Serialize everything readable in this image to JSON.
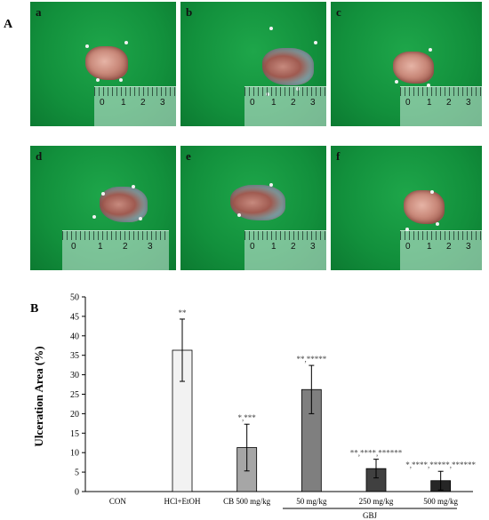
{
  "figure": {
    "panel_a_label": "A",
    "panel_b_label": "B",
    "photos": [
      {
        "letter": "a"
      },
      {
        "letter": "b"
      },
      {
        "letter": "c"
      },
      {
        "letter": "d"
      },
      {
        "letter": "e"
      },
      {
        "letter": "f"
      }
    ],
    "ruler_numbers": [
      "0",
      "1",
      "2",
      "3"
    ]
  },
  "chart_data": {
    "type": "bar",
    "ylabel": "Ulceration Area (%)",
    "ylim": [
      0,
      50
    ],
    "yticks": [
      0,
      5,
      10,
      15,
      20,
      25,
      30,
      35,
      40,
      45,
      50
    ],
    "categories": [
      "CON",
      "HCl+EtOH",
      "CB 500 mg/kg",
      "50 mg/kg",
      "250 mg/kg",
      "500 mg/kg"
    ],
    "values": [
      0,
      36.3,
      11.3,
      26.2,
      5.9,
      2.8
    ],
    "errors": [
      0,
      8.0,
      6.0,
      6.2,
      2.4,
      2.4
    ],
    "annotations": [
      "",
      "**",
      "*,***",
      "**,*****",
      "**,****,******",
      "*,****,*****,******"
    ],
    "group_label": "GBJ",
    "colors": [
      "#ffffff",
      "#f2f2f2",
      "#a6a6a6",
      "#7f7f7f",
      "#404040",
      "#262626"
    ]
  }
}
